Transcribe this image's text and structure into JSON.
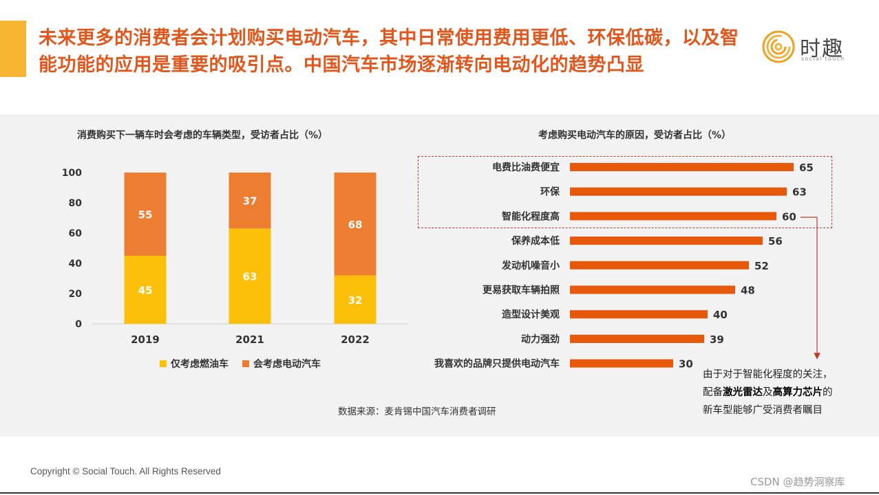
{
  "headline": "未来更多的消费者会计划购买电动汽车，其中日常使用费用更低、环保低碳，以及智能功能的应用是重要的吸引点。中国汽车市场逐渐转向电动化的趋势凸显",
  "logo": {
    "cn": "时趣",
    "en": "social touch"
  },
  "source": "数据来源：麦肯锡中国汽车消费者调研",
  "annotation": {
    "line1": "由于对于智能化程度的关注，",
    "line2_prefix": "配备",
    "line2_bold1": "激光雷达",
    "line2_mid": "及",
    "line2_bold2": "高算力芯片",
    "line2_suffix": "的",
    "line3": "新车型能够广受消费者瞩目"
  },
  "footer": "Copyright © Social Touch. All Rights Reserved",
  "watermark": "CSDN @趋势洞察库",
  "colors": {
    "ice": "#fcc00b",
    "ev": "#ed7d31",
    "bar": "#e8580b",
    "headline": "#e2561b"
  },
  "chart_data": [
    {
      "type": "bar",
      "stacked": true,
      "title": "消费购买下一辆车时会考虑的车辆类型，受访者占比（%）",
      "categories": [
        "2019",
        "2021",
        "2022"
      ],
      "series": [
        {
          "name": "仅考虑燃油车",
          "values": [
            45,
            63,
            32
          ]
        },
        {
          "name": "会考虑电动汽车",
          "values": [
            55,
            37,
            68
          ]
        }
      ],
      "ylim": [
        0,
        100
      ],
      "yticks": [
        0,
        20,
        40,
        60,
        80,
        100
      ],
      "legend": "bottom",
      "grid": false
    },
    {
      "type": "bar",
      "orientation": "horizontal",
      "title": "考虑购买电动汽车的原因，受访者占比（%）",
      "categories": [
        "电费比油费便宜",
        "环保",
        "智能化程度高",
        "保养成本低",
        "发动机噪音小",
        "更易获取车辆拍照",
        "造型设计美观",
        "动力强劲",
        "我喜欢的品牌只提供电动汽车"
      ],
      "values": [
        65,
        63,
        60,
        56,
        52,
        48,
        40,
        39,
        30
      ],
      "highlighted": [
        "电费比油费便宜",
        "环保",
        "智能化程度高"
      ],
      "grid": false
    }
  ]
}
